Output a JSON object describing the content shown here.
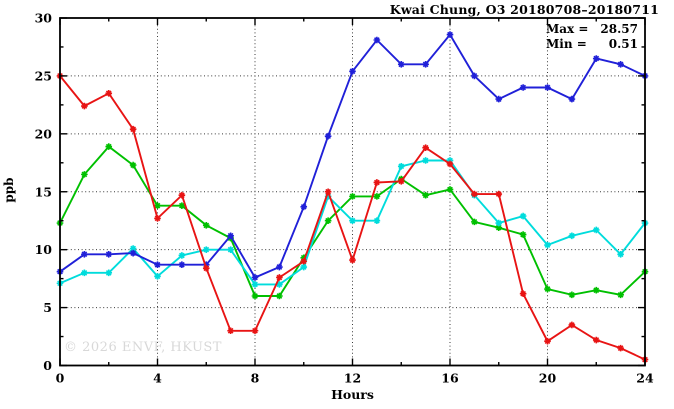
{
  "watermark": "© 2026 ENVF, HKUST",
  "chart_data": {
    "type": "line",
    "title": "Kwai Chung, O3 20180708–20180711",
    "xlabel": "Hours",
    "ylabel": "ppb",
    "xlim": [
      0,
      24
    ],
    "ylim": [
      0,
      30
    ],
    "x_ticks": [
      0,
      4,
      8,
      12,
      16,
      20,
      24
    ],
    "y_ticks": [
      0,
      5,
      10,
      15,
      20,
      25,
      30
    ],
    "x_minor_step": 2,
    "y_minor_step": 2.5,
    "grid": "dotted-major",
    "legend_position": "none",
    "annotations": {
      "max_prefix": "Max =",
      "max_value": "28.57",
      "min_prefix": "Min =",
      "min_value": "0.51"
    },
    "x": [
      0,
      1,
      2,
      3,
      4,
      5,
      6,
      7,
      8,
      9,
      10,
      11,
      12,
      13,
      14,
      15,
      16,
      17,
      18,
      19,
      20,
      21,
      22,
      23,
      24
    ],
    "series": [
      {
        "name": "series-green",
        "color": "#00c000",
        "values": [
          12.3,
          16.5,
          18.9,
          17.3,
          13.8,
          13.8,
          12.1,
          11.0,
          6.0,
          6.0,
          9.3,
          12.5,
          14.6,
          14.6,
          16.1,
          14.7,
          15.2,
          12.4,
          11.9,
          11.3,
          6.6,
          6.1,
          6.5,
          6.1,
          8.1
        ]
      },
      {
        "name": "series-cyan",
        "color": "#00dcdc",
        "values": [
          7.1,
          8.0,
          8.0,
          10.1,
          7.7,
          9.5,
          10.0,
          10.0,
          7.0,
          7.0,
          8.5,
          14.6,
          12.5,
          12.5,
          17.2,
          17.7,
          17.7,
          14.7,
          12.3,
          12.9,
          10.4,
          11.2,
          11.7,
          9.6,
          12.3
        ]
      },
      {
        "name": "series-blue",
        "color": "#2020d8",
        "values": [
          8.1,
          9.6,
          9.6,
          9.7,
          8.7,
          8.7,
          8.7,
          11.2,
          7.6,
          8.5,
          13.7,
          19.8,
          25.4,
          28.1,
          26.0,
          26.0,
          28.57,
          25.0,
          23.0,
          24.0,
          24.0,
          23.0,
          26.5,
          26.0,
          25.0
        ]
      },
      {
        "name": "series-red",
        "color": "#e81414",
        "values": [
          25.0,
          22.4,
          23.5,
          20.4,
          12.7,
          14.7,
          8.4,
          3.0,
          3.0,
          7.6,
          9.0,
          15.0,
          9.1,
          15.8,
          15.9,
          18.8,
          17.4,
          14.8,
          14.8,
          6.2,
          2.1,
          3.5,
          2.2,
          1.5,
          0.51
        ]
      }
    ]
  }
}
